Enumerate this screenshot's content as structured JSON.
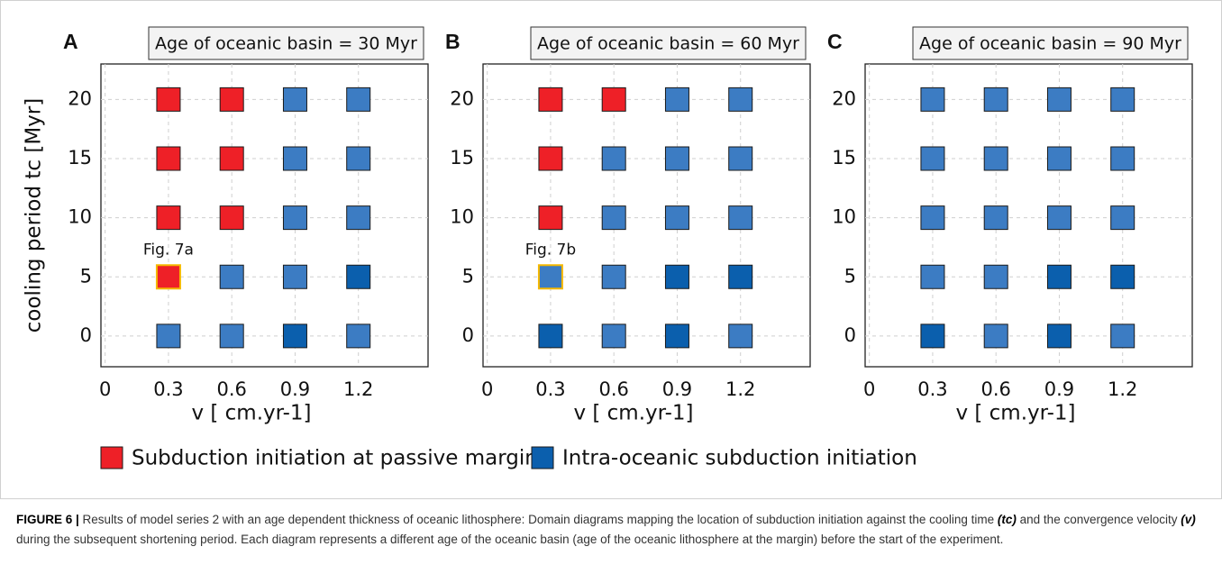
{
  "chart_data": [
    {
      "type": "scatter",
      "panel": "A",
      "title": "Age of oceanic basin = 30 Myr",
      "xlabel": "v [ cm.yr-1]",
      "ylabel": "cooling period tc [Myr]",
      "xlim": [
        -0.02,
        1.53
      ],
      "ylim": [
        -2.6,
        23
      ],
      "xticks": [
        0,
        0.3,
        0.6,
        0.9,
        1.2
      ],
      "yticks": [
        0,
        5,
        10,
        15,
        20
      ],
      "grid": true,
      "series": [
        {
          "name": "Subduction initiation at passive margin",
          "color": "#ee2027",
          "x": [
            0.3,
            0.6,
            0.3,
            0.6,
            0.3,
            0.6,
            0.3
          ],
          "y": [
            20,
            20,
            15,
            15,
            10,
            10,
            5
          ]
        },
        {
          "name": "Intra-oceanic subduction initiation",
          "color": "#0b5fad",
          "x": [
            0.9,
            1.2,
            0.9,
            1.2,
            0.9,
            1.2,
            0.6,
            0.9,
            1.2,
            0.3,
            0.6,
            0.9,
            1.2
          ],
          "y": [
            20,
            20,
            15,
            15,
            10,
            10,
            5,
            5,
            5,
            0,
            0,
            0,
            0
          ],
          "colors": [
            "#3c7cc3",
            "#3c7cc3",
            "#3c7cc3",
            "#3c7cc3",
            "#3c7cc3",
            "#3c7cc3",
            "#3c7cc3",
            "#3c7cc3",
            "#0b5fad",
            "#3c7cc3",
            "#3c7cc3",
            "#0b5fad",
            "#3c7cc3"
          ]
        }
      ],
      "annotation": {
        "text": "Fig. 7a",
        "x": 0.3,
        "y": 5,
        "highlight_color": "#f5b800"
      }
    },
    {
      "type": "scatter",
      "panel": "B",
      "title": "Age of oceanic basin = 60 Myr",
      "xlabel": "v [ cm.yr-1]",
      "xlim": [
        -0.02,
        1.53
      ],
      "ylim": [
        -2.6,
        23
      ],
      "xticks": [
        0,
        0.3,
        0.6,
        0.9,
        1.2
      ],
      "yticks": [
        0,
        5,
        10,
        15,
        20
      ],
      "grid": true,
      "series": [
        {
          "name": "Subduction initiation at passive margin",
          "color": "#ee2027",
          "x": [
            0.3,
            0.6,
            0.3,
            0.3
          ],
          "y": [
            20,
            20,
            15,
            10
          ]
        },
        {
          "name": "Intra-oceanic subduction initiation",
          "color": "#0b5fad",
          "x": [
            0.9,
            1.2,
            0.6,
            0.9,
            1.2,
            0.6,
            0.9,
            1.2,
            0.3,
            0.6,
            0.9,
            1.2,
            0.3,
            0.6,
            0.9,
            1.2
          ],
          "y": [
            20,
            20,
            15,
            15,
            15,
            10,
            10,
            10,
            5,
            5,
            5,
            5,
            0,
            0,
            0,
            0
          ],
          "colors": [
            "#3c7cc3",
            "#3c7cc3",
            "#3c7cc3",
            "#3c7cc3",
            "#3c7cc3",
            "#3c7cc3",
            "#3c7cc3",
            "#3c7cc3",
            "#3c7cc3",
            "#3c7cc3",
            "#0b5fad",
            "#0b5fad",
            "#0b5fad",
            "#3c7cc3",
            "#0b5fad",
            "#3c7cc3"
          ]
        }
      ],
      "annotation": {
        "text": "Fig. 7b",
        "x": 0.3,
        "y": 5,
        "highlight_color": "#f5b800"
      }
    },
    {
      "type": "scatter",
      "panel": "C",
      "title": "Age of oceanic basin = 90 Myr",
      "xlabel": "v [ cm.yr-1]",
      "xlim": [
        -0.02,
        1.53
      ],
      "ylim": [
        -2.6,
        23
      ],
      "xticks": [
        0,
        0.3,
        0.6,
        0.9,
        1.2
      ],
      "yticks": [
        0,
        5,
        10,
        15,
        20
      ],
      "grid": true,
      "series": [
        {
          "name": "Intra-oceanic subduction initiation",
          "color": "#0b5fad",
          "x": [
            0.3,
            0.6,
            0.9,
            1.2,
            0.3,
            0.6,
            0.9,
            1.2,
            0.3,
            0.6,
            0.9,
            1.2,
            0.3,
            0.6,
            0.9,
            1.2,
            0.3,
            0.6,
            0.9,
            1.2
          ],
          "y": [
            20,
            20,
            20,
            20,
            15,
            15,
            15,
            15,
            10,
            10,
            10,
            10,
            5,
            5,
            5,
            5,
            0,
            0,
            0,
            0
          ],
          "colors": [
            "#3c7cc3",
            "#3c7cc3",
            "#3c7cc3",
            "#3c7cc3",
            "#3c7cc3",
            "#3c7cc3",
            "#3c7cc3",
            "#3c7cc3",
            "#3c7cc3",
            "#3c7cc3",
            "#3c7cc3",
            "#3c7cc3",
            "#3c7cc3",
            "#3c7cc3",
            "#0b5fad",
            "#0b5fad",
            "#0b5fad",
            "#3c7cc3",
            "#0b5fad",
            "#3c7cc3"
          ]
        }
      ]
    }
  ],
  "caption": [
    "FIGURE 6 |",
    " Results of model series 2 with an age dependent thickness of oceanic lithosphere: Domain diagrams mapping the location of subduction initiation against the cooling time ",
    "(tc)",
    " and the convergence velocity ",
    "(v)",
    " during the subsequent shortening period. Each diagram represents a different age of the oceanic basin (age of the oceanic lithosphere at the margin) before the start of the experiment."
  ]
}
